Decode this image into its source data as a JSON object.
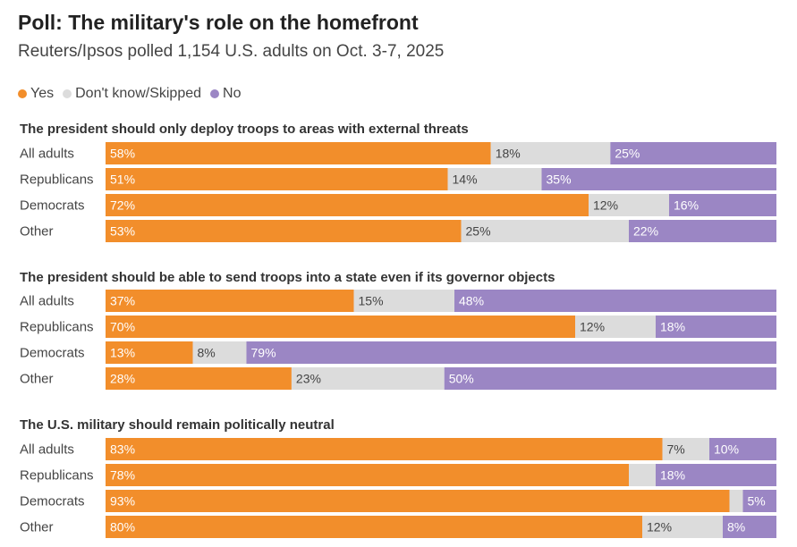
{
  "title": "Poll: The military's role on the homefront",
  "subtitle": "Reuters/Ipsos polled 1,154 U.S. adults on Oct. 3-7, 2025",
  "legend": [
    {
      "label": "Yes",
      "color": "#f28e2b"
    },
    {
      "label": "Don't know/Skipped",
      "color": "#dcdcdc"
    },
    {
      "label": "No",
      "color": "#9b86c4"
    }
  ],
  "chart_data": {
    "type": "bar",
    "orientation": "horizontal",
    "stacked": true,
    "groups": [
      "All adults",
      "Republicans",
      "Democrats",
      "Other"
    ],
    "panels": [
      {
        "question": "The president should only deploy troops to areas with external threats",
        "series": [
          {
            "name": "Yes",
            "values": [
              58,
              51,
              72,
              53
            ]
          },
          {
            "name": "Don't know/Skipped",
            "values": [
              18,
              14,
              12,
              25
            ]
          },
          {
            "name": "No",
            "values": [
              25,
              35,
              16,
              22
            ]
          }
        ],
        "labels": [
          [
            "58%",
            "18%",
            "25%"
          ],
          [
            "51%",
            "14%",
            "35%"
          ],
          [
            "72%",
            "12%",
            "16%"
          ],
          [
            "53%",
            "25%",
            "22%"
          ]
        ]
      },
      {
        "question": "The president should be able to send troops into a state even if its governor objects",
        "series": [
          {
            "name": "Yes",
            "values": [
              37,
              70,
              13,
              28
            ]
          },
          {
            "name": "Don't know/Skipped",
            "values": [
              15,
              12,
              8,
              23
            ]
          },
          {
            "name": "No",
            "values": [
              48,
              18,
              79,
              50
            ]
          }
        ],
        "labels": [
          [
            "37%",
            "15%",
            "48%"
          ],
          [
            "70%",
            "12%",
            "18%"
          ],
          [
            "13%",
            "8%",
            "79%"
          ],
          [
            "28%",
            "23%",
            "50%"
          ]
        ]
      },
      {
        "question": "The U.S. military should remain politically neutral",
        "series": [
          {
            "name": "Yes",
            "values": [
              83,
              78,
              93,
              80
            ]
          },
          {
            "name": "Don't know/Skipped",
            "values": [
              7,
              4,
              2,
              12
            ]
          },
          {
            "name": "No",
            "values": [
              10,
              18,
              5,
              8
            ]
          }
        ],
        "labels": [
          [
            "83%",
            "7%",
            "10%"
          ],
          [
            "78%",
            "",
            "18%"
          ],
          [
            "93%",
            "",
            "5%"
          ],
          [
            "80%",
            "12%",
            "8%"
          ]
        ]
      }
    ],
    "colors": {
      "yes": "#f28e2b",
      "dontknow": "#dcdcdc",
      "no": "#9b86c4",
      "label_on_yes": "#ffffff",
      "label_on_no": "#ffffff",
      "label_on_dontknow": "#444444"
    }
  }
}
